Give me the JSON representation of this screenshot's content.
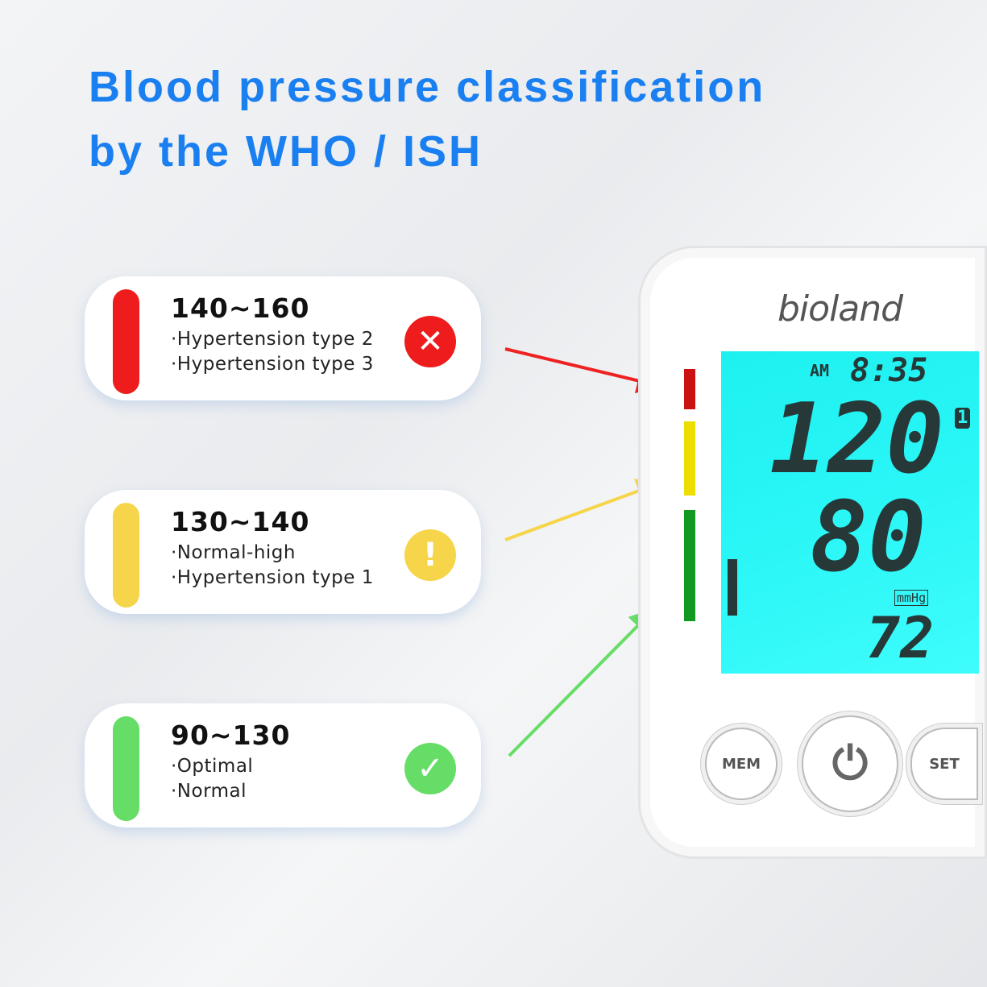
{
  "title": {
    "line1": "Blood pressure classification",
    "line2": "by the WHO / ISH"
  },
  "cards": [
    {
      "range": "140~160",
      "lines": [
        "·Hypertension type 2",
        "·Hypertension type 3"
      ],
      "color": "#ee1c1c",
      "icon": "x-circle-icon",
      "icon_glyph": "✕"
    },
    {
      "range": "130~140",
      "lines": [
        "·Normal-high",
        "·Hypertension type 1"
      ],
      "color": "#f6d54a",
      "icon": "exclamation-circle-icon",
      "icon_glyph": "!"
    },
    {
      "range": "90~130",
      "lines": [
        "·Optimal",
        "·Normal"
      ],
      "color": "#66dd66",
      "icon": "check-circle-icon",
      "icon_glyph": "✓"
    }
  ],
  "device": {
    "brand": "bioland",
    "ampm": "AM",
    "time": "8:35",
    "systolic": "120",
    "diastolic": "80",
    "unit": "mmHg",
    "pulse": "72",
    "user": "1",
    "buttons": {
      "mem": "MEM",
      "set": "SET"
    },
    "indicator_colors": [
      "#cc1111",
      "#eedd00",
      "#119922"
    ]
  }
}
